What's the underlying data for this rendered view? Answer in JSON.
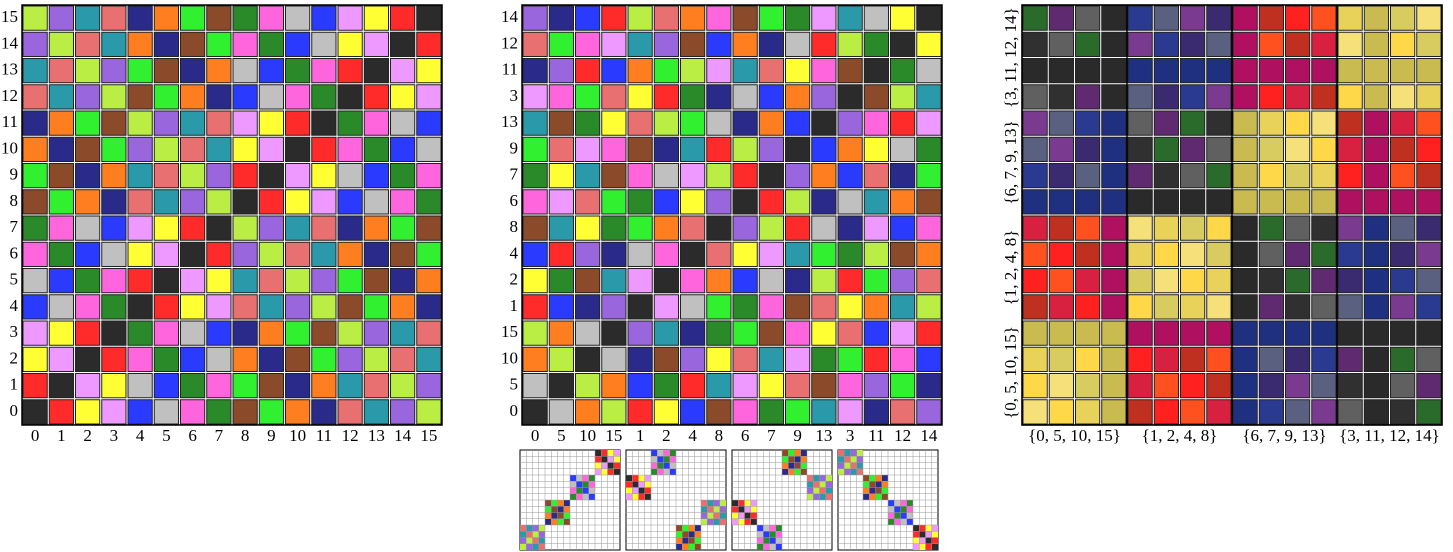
{
  "panels": [
    {
      "row_labels": [
        15,
        14,
        13,
        12,
        11,
        10,
        9,
        8,
        7,
        6,
        5,
        4,
        3,
        2,
        1,
        0
      ],
      "col_labels": [
        0,
        1,
        2,
        3,
        4,
        5,
        6,
        7,
        8,
        9,
        10,
        11,
        12,
        13,
        14,
        15
      ]
    },
    {
      "row_labels": [
        14,
        12,
        11,
        3,
        13,
        9,
        7,
        6,
        8,
        4,
        2,
        1,
        15,
        10,
        5,
        0
      ],
      "col_labels": [
        0,
        5,
        10,
        15,
        1,
        2,
        4,
        8,
        6,
        7,
        9,
        13,
        3,
        11,
        12,
        14
      ]
    },
    {
      "row_labels": [
        "{3, 11, 12, 14}",
        "{6, 7, 9, 13}",
        "{1, 2, 4, 8}",
        "{0, 5, 10, 15}"
      ],
      "col_labels": [
        "{0, 5, 10, 15}",
        "{1, 2, 4, 8}",
        "{6, 7, 9, 13}",
        "{3, 11, 12, 14}"
      ]
    }
  ]
}
